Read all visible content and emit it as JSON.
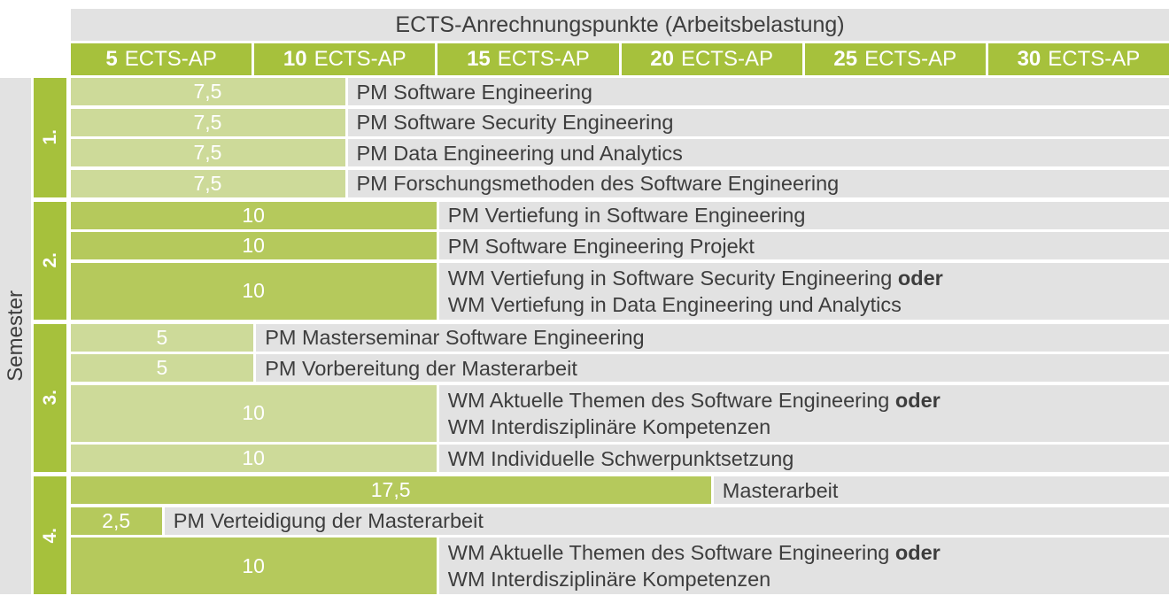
{
  "title": "ECTS-Anrechnungspunkte (Arbeitsbelastung)",
  "y_axis_label": "Semester",
  "axis_cells": [
    {
      "num": "5",
      "unit": "ECTS-AP"
    },
    {
      "num": "10",
      "unit": "ECTS-AP"
    },
    {
      "num": "15",
      "unit": "ECTS-AP"
    },
    {
      "num": "20",
      "unit": "ECTS-AP"
    },
    {
      "num": "25",
      "unit": "ECTS-AP"
    },
    {
      "num": "30",
      "unit": "ECTS-AP"
    }
  ],
  "colors": {
    "green_strong": "#a6c13c",
    "green_bar_medium": "#b5c95c",
    "green_bar_light": "#cdda99",
    "row_gray": "#e2e2e2",
    "text_dark": "#3d3d3d",
    "bar_text": "#ffffff"
  },
  "semesters": [
    {
      "label": "1.",
      "rows": [
        {
          "ects": 7.5,
          "ects_label": "7,5",
          "lines": [
            {
              "text": "PM Software Engineering",
              "bold": ""
            }
          ]
        },
        {
          "ects": 7.5,
          "ects_label": "7,5",
          "lines": [
            {
              "text": "PM Software Security Engineering",
              "bold": ""
            }
          ]
        },
        {
          "ects": 7.5,
          "ects_label": "7,5",
          "lines": [
            {
              "text": "PM Data Engineering und Analytics",
              "bold": ""
            }
          ]
        },
        {
          "ects": 7.5,
          "ects_label": "7,5",
          "lines": [
            {
              "text": "PM Forschungsmethoden des Software Engineering",
              "bold": ""
            }
          ]
        }
      ]
    },
    {
      "label": "2.",
      "rows": [
        {
          "ects": 10,
          "ects_label": "10",
          "lines": [
            {
              "text": "PM Vertiefung in Software Engineering",
              "bold": ""
            }
          ]
        },
        {
          "ects": 10,
          "ects_label": "10",
          "lines": [
            {
              "text": "PM Software Engineering Projekt",
              "bold": ""
            }
          ]
        },
        {
          "ects": 10,
          "ects_label": "10",
          "lines": [
            {
              "text": "WM Vertiefung in Software Security Engineering ",
              "bold": "oder"
            },
            {
              "text": "WM Vertiefung in Data Engineering und Analytics",
              "bold": ""
            }
          ]
        }
      ]
    },
    {
      "label": "3.",
      "rows": [
        {
          "ects": 5,
          "ects_label": "5",
          "lines": [
            {
              "text": "PM Masterseminar Software Engineering",
              "bold": ""
            }
          ]
        },
        {
          "ects": 5,
          "ects_label": "5",
          "lines": [
            {
              "text": "PM Vorbereitung der Masterarbeit",
              "bold": ""
            }
          ]
        },
        {
          "ects": 10,
          "ects_label": "10",
          "lines": [
            {
              "text": "WM Aktuelle Themen des Software Engineering ",
              "bold": "oder"
            },
            {
              "text": "WM Interdisziplinäre Kompetenzen",
              "bold": ""
            }
          ]
        },
        {
          "ects": 10,
          "ects_label": "10",
          "lines": [
            {
              "text": "WM Individuelle Schwerpunktsetzung",
              "bold": ""
            }
          ]
        }
      ]
    },
    {
      "label": "4.",
      "rows": [
        {
          "ects": 17.5,
          "ects_label": "17,5",
          "lines": [
            {
              "text": "Masterarbeit",
              "bold": ""
            }
          ]
        },
        {
          "ects": 2.5,
          "ects_label": "2,5",
          "lines": [
            {
              "text": "PM Verteidigung der Masterarbeit",
              "bold": ""
            }
          ]
        },
        {
          "ects": 10,
          "ects_label": "10",
          "lines": [
            {
              "text": "WM Aktuelle Themen des Software Engineering ",
              "bold": "oder"
            },
            {
              "text": "WM Interdisziplinäre Kompetenzen",
              "bold": ""
            }
          ]
        }
      ]
    }
  ],
  "chart_data": {
    "type": "bar",
    "orientation": "horizontal",
    "title": "ECTS-Anrechnungspunkte (Arbeitsbelastung)",
    "xlabel": "ECTS-AP",
    "ylabel": "Semester",
    "xlim": [
      0,
      30
    ],
    "x_ticks": [
      "5 ECTS-AP",
      "10 ECTS-AP",
      "15 ECTS-AP",
      "20 ECTS-AP",
      "25 ECTS-AP",
      "30 ECTS-AP"
    ],
    "grid": false,
    "legend": false,
    "groups": [
      {
        "semester": "1.",
        "bars": [
          {
            "label": "PM Software Engineering",
            "value": 7.5
          },
          {
            "label": "PM Software Security Engineering",
            "value": 7.5
          },
          {
            "label": "PM Data Engineering und Analytics",
            "value": 7.5
          },
          {
            "label": "PM Forschungsmethoden des Software Engineering",
            "value": 7.5
          }
        ]
      },
      {
        "semester": "2.",
        "bars": [
          {
            "label": "PM Vertiefung in Software Engineering",
            "value": 10
          },
          {
            "label": "PM Software Engineering Projekt",
            "value": 10
          },
          {
            "label": "WM Vertiefung in Software Security Engineering oder WM Vertiefung in Data Engineering und Analytics",
            "value": 10
          }
        ]
      },
      {
        "semester": "3.",
        "bars": [
          {
            "label": "PM Masterseminar Software Engineering",
            "value": 5
          },
          {
            "label": "PM Vorbereitung der Masterarbeit",
            "value": 5
          },
          {
            "label": "WM Aktuelle Themen des Software Engineering oder WM Interdisziplinäre Kompetenzen",
            "value": 10
          },
          {
            "label": "WM Individuelle Schwerpunktsetzung",
            "value": 10
          }
        ]
      },
      {
        "semester": "4.",
        "bars": [
          {
            "label": "Masterarbeit",
            "value": 17.5
          },
          {
            "label": "PM Verteidigung der Masterarbeit",
            "value": 2.5
          },
          {
            "label": "WM Aktuelle Themen des Software Engineering oder WM Interdisziplinäre Kompetenzen",
            "value": 10
          }
        ]
      }
    ]
  }
}
